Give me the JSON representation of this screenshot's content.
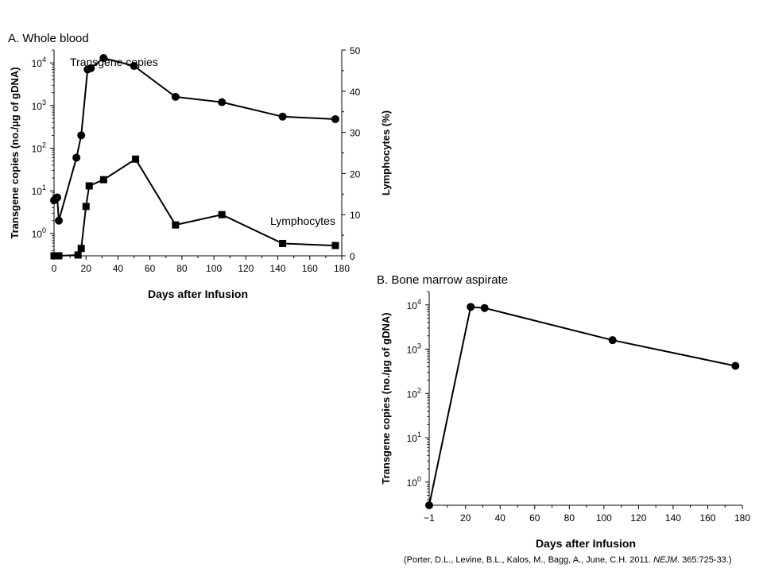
{
  "chart_data": [
    {
      "type": "line",
      "panel_title": "A. Whole blood",
      "xlabel": "Days after Infusion",
      "ylabel": "Transgene copies (no./µg of gDNA)",
      "y2label": "Lymphocytes (%)",
      "xlim": [
        0,
        180
      ],
      "x_ticks": [
        "0",
        "20",
        "40",
        "60",
        "80",
        "100",
        "120",
        "140",
        "160",
        "180"
      ],
      "y_scale": "log",
      "ylim": [
        0.3,
        20000
      ],
      "y_ticks": [
        {
          "base": "10",
          "exp": "0"
        },
        {
          "base": "10",
          "exp": "1"
        },
        {
          "base": "10",
          "exp": "2"
        },
        {
          "base": "10",
          "exp": "3"
        },
        {
          "base": "10",
          "exp": "4"
        }
      ],
      "y2lim": [
        0,
        50
      ],
      "y2_ticks": [
        "0",
        "10",
        "20",
        "30",
        "40",
        "50"
      ],
      "grid": false,
      "legend": "none",
      "series": [
        {
          "name": "Transgene copies",
          "axis": "left",
          "marker": "circle",
          "x": [
            0,
            1,
            2,
            3,
            14,
            17,
            21,
            23,
            31,
            50,
            76,
            105,
            143,
            176
          ],
          "y": [
            6,
            6.5,
            7,
            2,
            60,
            200,
            7000,
            7500,
            13000,
            8500,
            1600,
            1200,
            550,
            480
          ]
        },
        {
          "name": "Lymphocytes",
          "axis": "right",
          "marker": "square",
          "x": [
            0,
            3,
            15,
            17,
            20,
            22,
            31,
            51,
            76,
            105,
            143,
            176
          ],
          "y": [
            0,
            0,
            0.2,
            1.8,
            12,
            17,
            18.5,
            23.5,
            7.5,
            10,
            3,
            2.5
          ]
        }
      ]
    },
    {
      "type": "line",
      "panel_title": "B. Bone marrow aspirate",
      "xlabel": "Days after Infusion",
      "ylabel": "Transgene copies (no./µg of gDNA)",
      "xlim": [
        -1,
        180
      ],
      "x_ticks": [
        "−1",
        "20",
        "40",
        "60",
        "80",
        "100",
        "120",
        "140",
        "160",
        "180"
      ],
      "y_scale": "log",
      "ylim": [
        0.3,
        20000
      ],
      "y_ticks": [
        {
          "base": "10",
          "exp": "0"
        },
        {
          "base": "10",
          "exp": "1"
        },
        {
          "base": "10",
          "exp": "2"
        },
        {
          "base": "10",
          "exp": "3"
        },
        {
          "base": "10",
          "exp": "4"
        }
      ],
      "grid": false,
      "legend": "none",
      "series": [
        {
          "marker": "circle",
          "x": [
            -1,
            23,
            31,
            105,
            176
          ],
          "y": [
            0.3,
            9000,
            8500,
            1600,
            420
          ]
        }
      ]
    }
  ],
  "citation": {
    "before": "(Porter, D.L., Levine, B.L., Kalos, M., Bagg, A., June, C.H. 2011. ",
    "journal": "NEJM",
    "after": ". 365:725-33.)"
  }
}
